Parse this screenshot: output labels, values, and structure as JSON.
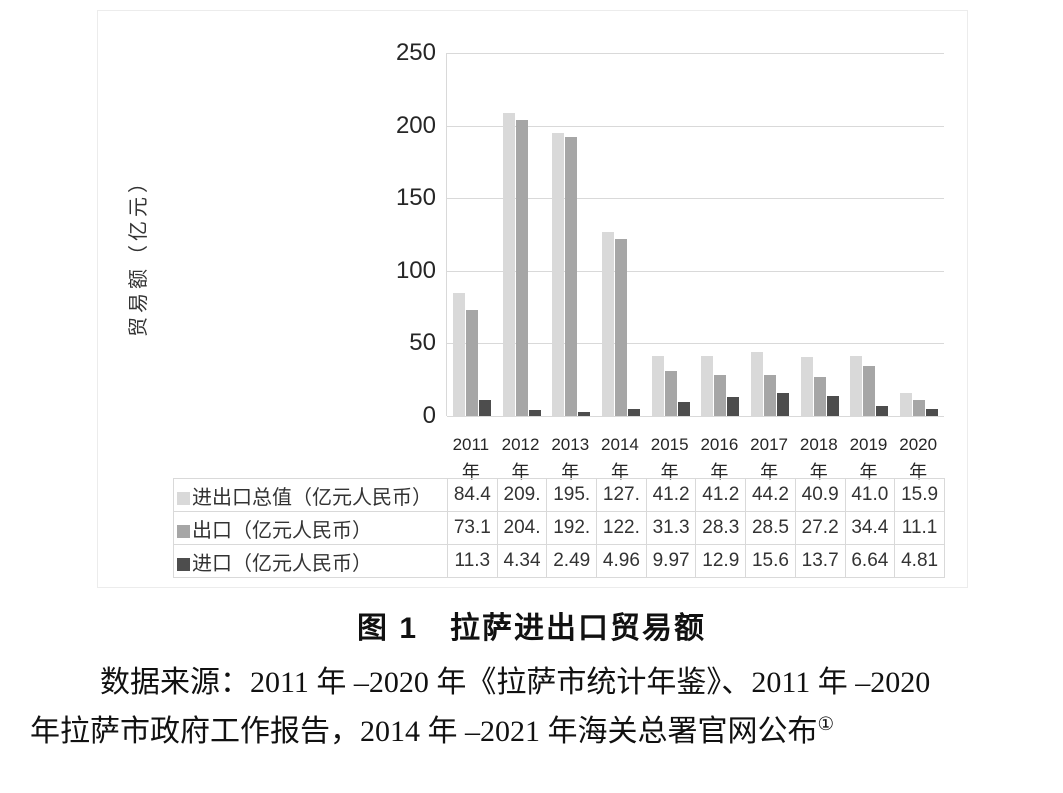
{
  "figure": {
    "caption": "图 1　拉萨进出口贸易额",
    "source_line1": "数据来源：2011 年 –2020 年《拉萨市统计年鉴》、2011 年 –2020",
    "source_line2": "年拉萨市政府工作报告，2014 年 –2021 年海关总署官网公布",
    "footnote_mark": "①"
  },
  "chart_data": {
    "type": "bar",
    "title": "拉萨进出口贸易额",
    "y_axis_title": "贸易额（亿元）",
    "ylabel": "贸易额（亿元）",
    "xlabel": "",
    "ylim": [
      0,
      250
    ],
    "yticks": [
      0,
      50,
      100,
      150,
      200,
      250
    ],
    "grid": true,
    "legend_position": "table-left",
    "categories": [
      "2011",
      "2012",
      "2013",
      "2014",
      "2015",
      "2016",
      "2017",
      "2018",
      "2019",
      "2020"
    ],
    "category_suffix": "年",
    "series": [
      {
        "key": "total",
        "name": "进出口总值（亿元人民币）",
        "color": "#d9d9d9",
        "values": [
          84.4,
          209,
          195,
          127,
          41.2,
          41.2,
          44.2,
          40.9,
          41.0,
          15.9
        ],
        "display": [
          "84.4",
          "209.",
          "195.",
          "127.",
          "41.2",
          "41.2",
          "44.2",
          "40.9",
          "41.0",
          "15.9"
        ]
      },
      {
        "key": "export",
        "name": "出口（亿元人民币）",
        "color": "#a6a6a6",
        "values": [
          73.1,
          204,
          192,
          122,
          31.3,
          28.3,
          28.5,
          27.2,
          34.4,
          11.1
        ],
        "display": [
          "73.1",
          "204.",
          "192.",
          "122.",
          "31.3",
          "28.3",
          "28.5",
          "27.2",
          "34.4",
          "11.1"
        ]
      },
      {
        "key": "import",
        "name": "进口（亿元人民币）",
        "color": "#4d4d4d",
        "values": [
          11.3,
          4.34,
          2.49,
          4.96,
          9.97,
          12.9,
          15.6,
          13.7,
          6.64,
          4.81
        ],
        "display": [
          "11.3",
          "4.34",
          "2.49",
          "4.96",
          "9.97",
          "12.9",
          "15.6",
          "13.7",
          "6.64",
          "4.81"
        ]
      }
    ]
  }
}
